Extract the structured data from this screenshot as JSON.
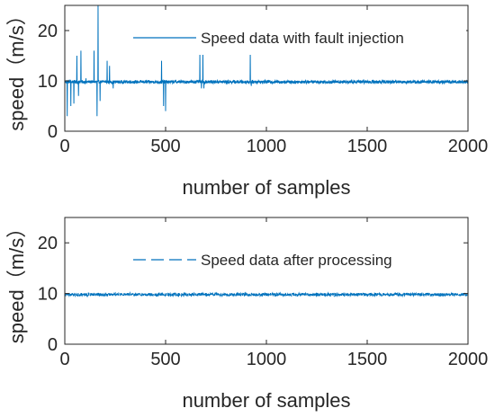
{
  "chart_data": [
    {
      "type": "line",
      "xlabel": "number of samples",
      "ylabel": "speed（m/s）",
      "xlim": [
        0,
        2000
      ],
      "ylim": [
        0,
        25
      ],
      "xticks": [
        0,
        500,
        1000,
        1500,
        2000
      ],
      "yticks": [
        0,
        10,
        20
      ],
      "legend_position": "top-right",
      "grid": false,
      "series": [
        {
          "name": "Speed data with fault injection",
          "style": "solid",
          "color": "#0072BD",
          "baseline": 9.8,
          "noise_amplitude": 0.3,
          "n_samples": 2000,
          "spikes": [
            [
              12,
              3.0
            ],
            [
              30,
              5.0
            ],
            [
              45,
              5.5
            ],
            [
              60,
              15.0
            ],
            [
              68,
              7.0
            ],
            [
              80,
              16.0
            ],
            [
              105,
              10.5
            ],
            [
              145,
              16.0
            ],
            [
              160,
              3.0
            ],
            [
              165,
              25.0
            ],
            [
              175,
              6.0
            ],
            [
              210,
              14.0
            ],
            [
              222,
              13.0
            ],
            [
              240,
              8.5
            ],
            [
              480,
              14.0
            ],
            [
              490,
              5.0
            ],
            [
              500,
              4.0
            ],
            [
              670,
              15.5
            ],
            [
              678,
              8.5
            ],
            [
              685,
              15.5
            ],
            [
              690,
              8.5
            ],
            [
              920,
              15.5
            ],
            [
              925,
              9.0
            ]
          ]
        }
      ]
    },
    {
      "type": "line",
      "xlabel": "number of samples",
      "ylabel": "speed（m/s）",
      "xlim": [
        0,
        2000
      ],
      "ylim": [
        0,
        25
      ],
      "xticks": [
        0,
        500,
        1000,
        1500,
        2000
      ],
      "yticks": [
        0,
        10,
        20
      ],
      "legend_position": "top-right",
      "grid": false,
      "series": [
        {
          "name": "Speed data after processing",
          "style": "dashed",
          "color": "#0072BD",
          "baseline": 9.8,
          "noise_amplitude": 0.3,
          "n_samples": 2000,
          "spikes": []
        }
      ]
    }
  ]
}
